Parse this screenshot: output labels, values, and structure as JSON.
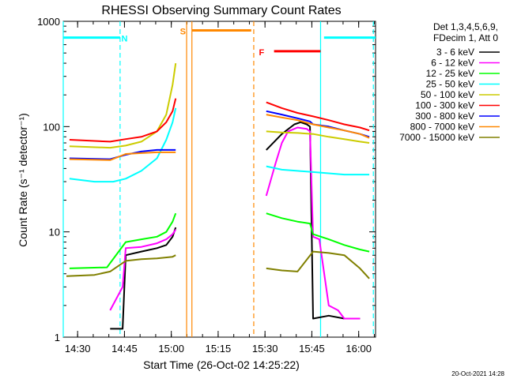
{
  "chart_data": {
    "type": "line",
    "title": "RHESSI Observing Summary Count Rates",
    "xlabel": "Start Time (26-Oct-02 14:25:22)",
    "ylabel": "Count Rate (s⁻¹ detector⁻¹)",
    "ylog": true,
    "ylim": [
      1,
      1000
    ],
    "xlim_minutes": [
      0,
      100
    ],
    "x_ticks": [
      {
        "t": 4.6,
        "label": "14:30"
      },
      {
        "t": 19.6,
        "label": "14:45"
      },
      {
        "t": 34.6,
        "label": "15:00"
      },
      {
        "t": 49.6,
        "label": "15:15"
      },
      {
        "t": 64.6,
        "label": "15:30"
      },
      {
        "t": 79.6,
        "label": "15:45"
      },
      {
        "t": 94.6,
        "label": "16:00"
      }
    ],
    "y_ticks": [
      {
        "v": 1,
        "label": "1"
      },
      {
        "v": 10,
        "label": "10"
      },
      {
        "v": 100,
        "label": "100"
      },
      {
        "v": 1000,
        "label": "1000"
      }
    ],
    "legend_header": [
      "Det 1,3,4,5,6,9,",
      "FDecim 1, Att 0"
    ],
    "series": [
      {
        "name": "3 - 6 keV",
        "color": "#000000",
        "x": [
          0,
          14,
          15,
          19,
          20,
          25,
          30,
          33,
          35,
          36,
          63,
          65,
          70,
          74,
          76,
          78,
          79,
          80,
          85,
          90,
          95,
          98
        ],
        "y": [
          null,
          null,
          1.2,
          1.2,
          6.0,
          6.5,
          7.0,
          7.5,
          9.0,
          11.0,
          null,
          60,
          85,
          105,
          110,
          105,
          100,
          1.5,
          1.6,
          1.5,
          1.5,
          null
        ]
      },
      {
        "name": "6 - 12 keV",
        "color": "#ff00ff",
        "x": [
          0,
          14,
          15,
          19,
          20,
          25,
          30,
          33,
          35,
          36,
          63,
          65,
          68,
          70,
          72,
          75,
          78,
          79,
          80,
          82,
          85,
          88,
          90,
          95,
          98
        ],
        "y": [
          null,
          null,
          1.8,
          3.0,
          7.0,
          7.2,
          7.8,
          8.5,
          9.5,
          10.5,
          null,
          22,
          45,
          70,
          90,
          98,
          95,
          90,
          9.0,
          8.5,
          2.0,
          1.8,
          1.5,
          1.5,
          null
        ]
      },
      {
        "name": "12 - 25 keV",
        "color": "#00ff00",
        "x": [
          0,
          2,
          14,
          20,
          25,
          30,
          33,
          35,
          36,
          63,
          65,
          70,
          75,
          79,
          80,
          85,
          90,
          95,
          98
        ],
        "y": [
          null,
          4.5,
          4.6,
          8.0,
          8.5,
          9.0,
          10.0,
          12.5,
          15.0,
          null,
          15.0,
          13.5,
          12.5,
          12.0,
          9.5,
          8.5,
          7.5,
          6.8,
          6.5
        ]
      },
      {
        "name": "25 - 50 keV",
        "color": "#00ffff",
        "x": [
          0,
          2,
          10,
          16,
          20,
          25,
          30,
          33,
          35,
          36,
          63,
          65,
          70,
          75,
          80,
          85,
          90,
          95,
          98
        ],
        "y": [
          null,
          32,
          30,
          30,
          32,
          38,
          50,
          75,
          110,
          150,
          null,
          42,
          39,
          38,
          37,
          36,
          35,
          35,
          35
        ]
      },
      {
        "name": "50 - 100 keV",
        "color": "#cccc00",
        "x": [
          0,
          2,
          15,
          20,
          25,
          30,
          33,
          35,
          36,
          63,
          65,
          70,
          75,
          80,
          85,
          90,
          95,
          98
        ],
        "y": [
          null,
          65,
          63,
          66,
          72,
          90,
          130,
          250,
          400,
          null,
          90,
          88,
          87,
          85,
          80,
          76,
          72,
          70
        ]
      },
      {
        "name": "100 - 300 keV",
        "color": "#ff0000",
        "x": [
          0,
          2,
          15,
          20,
          25,
          30,
          33,
          35,
          36,
          63,
          65,
          70,
          75,
          80,
          85,
          90,
          95,
          98
        ],
        "y": [
          null,
          75,
          72,
          76,
          80,
          90,
          110,
          140,
          185,
          null,
          170,
          150,
          135,
          125,
          115,
          105,
          98,
          92
        ]
      },
      {
        "name": "300 - 800 keV",
        "color": "#0000ff",
        "x": [
          0,
          2,
          15,
          20,
          25,
          30,
          33,
          35,
          36,
          63,
          65,
          70,
          75,
          79,
          80,
          85,
          90,
          95,
          98
        ],
        "y": [
          null,
          50,
          49,
          54,
          58,
          60,
          60,
          60,
          60,
          null,
          140,
          130,
          120,
          112,
          105,
          100,
          92,
          85,
          80
        ]
      },
      {
        "name": "800 - 7000 keV",
        "color": "#ff8800",
        "x": [
          0,
          2,
          15,
          20,
          25,
          30,
          35,
          36,
          63,
          65,
          70,
          75,
          80,
          85,
          90,
          95,
          98
        ],
        "y": [
          null,
          49,
          48,
          55,
          56,
          57,
          57,
          57,
          null,
          130,
          122,
          115,
          105,
          98,
          92,
          85,
          78
        ]
      },
      {
        "name": "7000 - 15000 keV",
        "color": "#808000",
        "x": [
          0,
          1,
          10,
          15,
          20,
          25,
          30,
          35,
          36,
          63,
          65,
          70,
          75,
          80,
          85,
          90,
          95,
          98
        ],
        "y": [
          null,
          3.8,
          3.9,
          4.2,
          5.3,
          5.5,
          5.6,
          5.8,
          6.0,
          null,
          4.5,
          4.3,
          4.2,
          6.5,
          6.3,
          6.0,
          4.5,
          3.6
        ]
      }
    ],
    "annotations": [
      {
        "label": "N",
        "color": "#00ffff",
        "bar": [
          0,
          18.2
        ],
        "bar_y": 700,
        "label_t": 19.6,
        "label_y": 700
      },
      {
        "label": "S",
        "color": "#ff8800",
        "bar": [
          41.2,
          60.2
        ],
        "bar_y": 820,
        "label_t": 38.3,
        "label_y": 820
      },
      {
        "label": "F",
        "color": "#ff0000",
        "bar": [
          67.5,
          82.4
        ],
        "bar_y": 520,
        "label_t": 63.5,
        "label_y": 520
      },
      {
        "label": "",
        "color": "#00ffff",
        "bar": [
          83.5,
          100
        ],
        "bar_y": 700,
        "label_t": null,
        "label_y": null
      }
    ],
    "vlines": [
      {
        "t": 0,
        "color": "#00ffff",
        "dash": false
      },
      {
        "t": 18.2,
        "color": "#00ffff",
        "dash": true
      },
      {
        "t": 39.5,
        "color": "#ff8800",
        "dash": false
      },
      {
        "t": 41.2,
        "color": "#ff8800",
        "dash": false
      },
      {
        "t": 61.0,
        "color": "#ff8800",
        "dash": true
      },
      {
        "t": 82.4,
        "color": "#00ffff",
        "dash": false
      },
      {
        "t": 99.3,
        "color": "#00ffff",
        "dash": true
      }
    ]
  },
  "footer": {
    "timestamp": "20-Oct-2021 14:28"
  }
}
